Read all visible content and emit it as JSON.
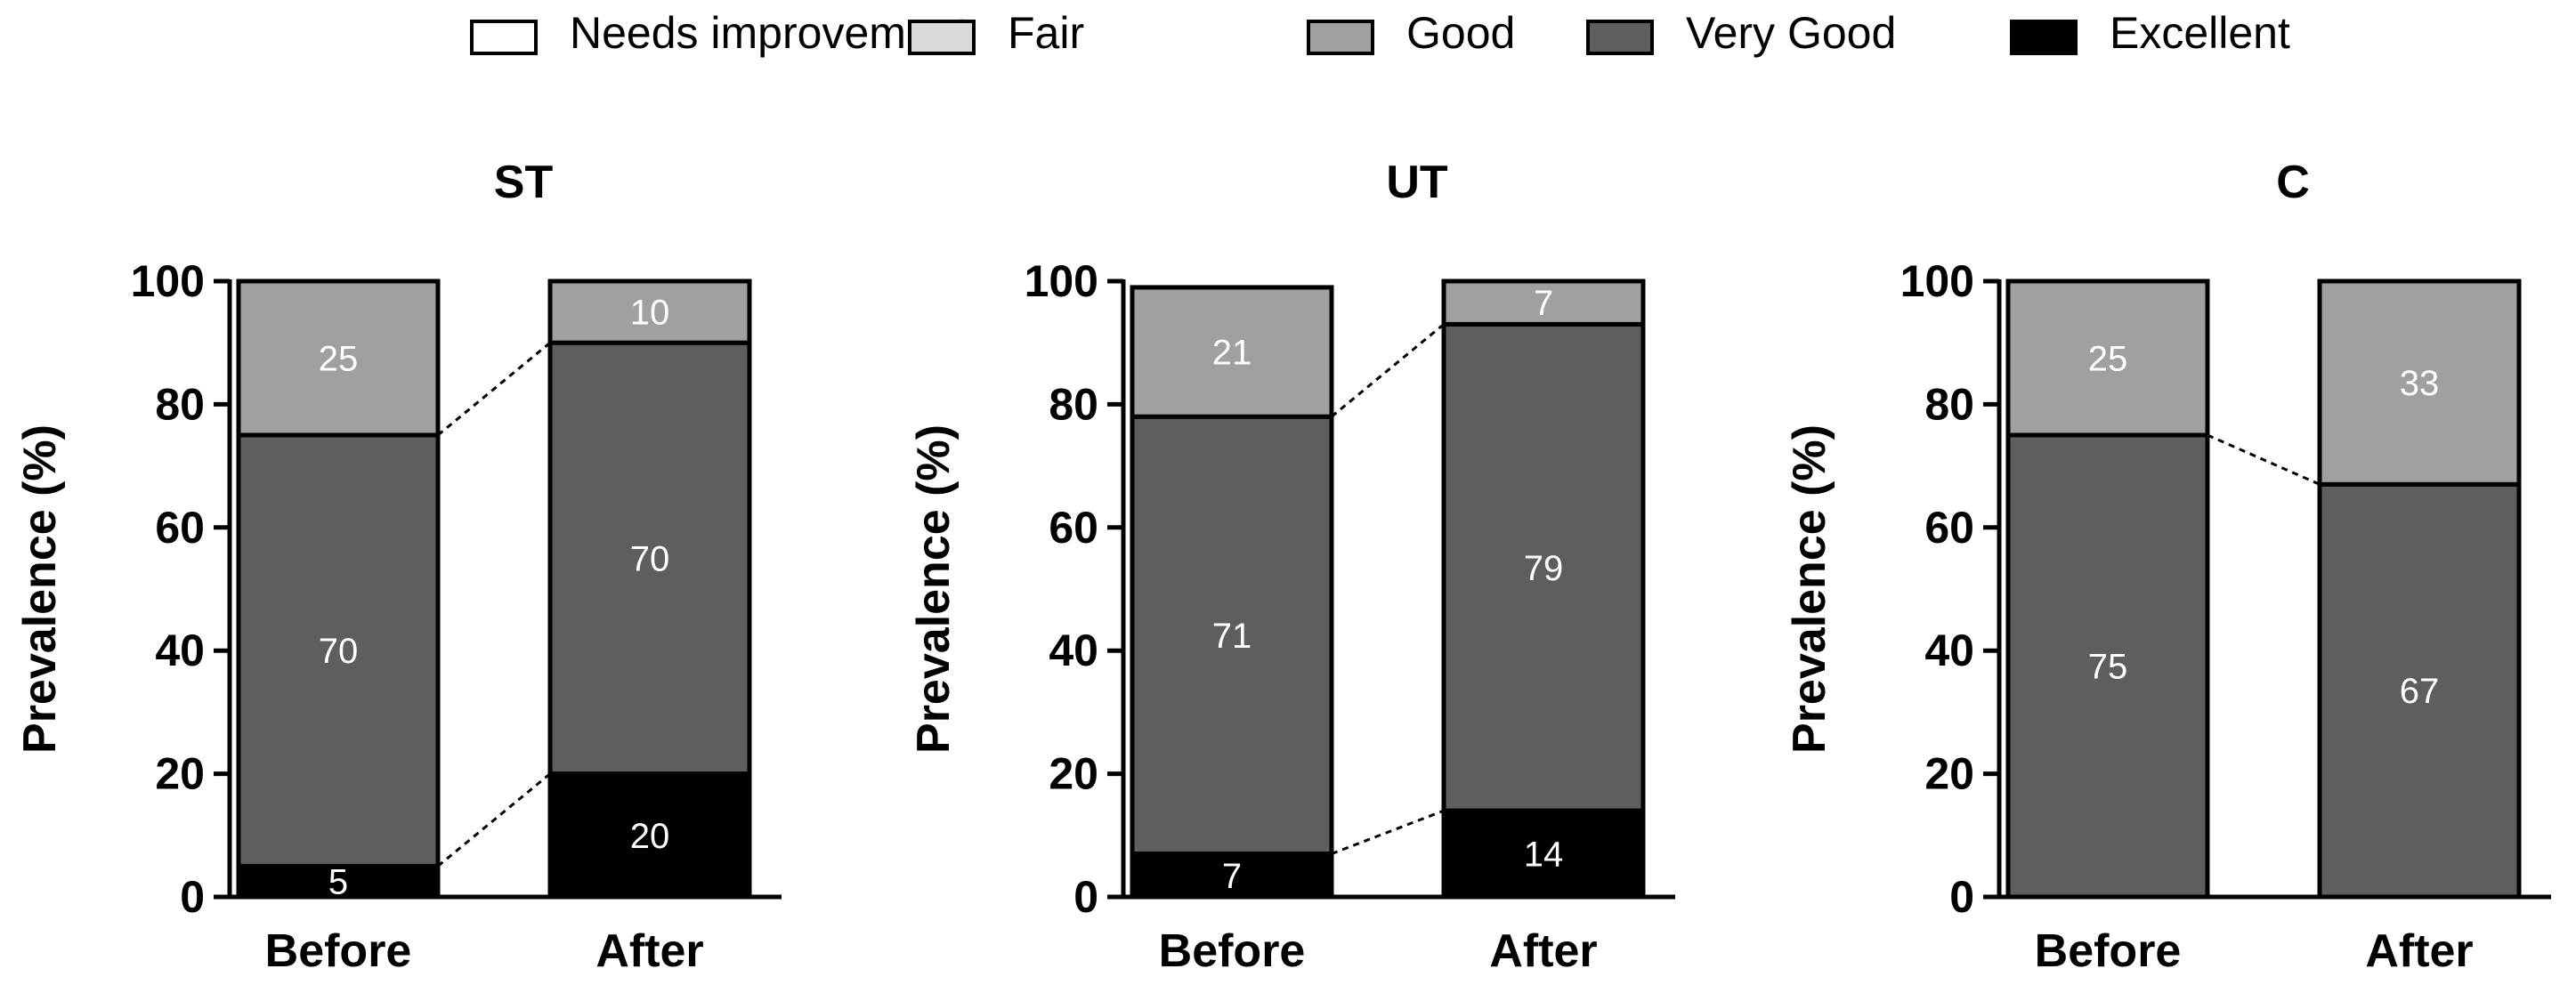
{
  "legend": [
    {
      "label": "Needs improvement",
      "color": "#ffffff"
    },
    {
      "label": "Fair",
      "color": "#d9d9d9"
    },
    {
      "label": "Good",
      "color": "#a09fa2"
    },
    {
      "label": "Very Good",
      "color": "#5e5e5e"
    },
    {
      "label": "Excellent",
      "color": "#000000"
    }
  ],
  "colors": {
    "label_on_dark": "#ffffff",
    "axis": "#000000"
  },
  "chart_data": [
    {
      "type": "bar",
      "stacked": true,
      "title": "ST",
      "categories": [
        "Before",
        "After"
      ],
      "ylabel": "Prevalence (%)",
      "ylim": [
        0,
        100
      ],
      "yticks": [
        "0",
        "20",
        "40",
        "60",
        "80",
        "100"
      ],
      "series": [
        {
          "name": "Excellent",
          "values": [
            5,
            20
          ],
          "labels": [
            "5",
            "20"
          ]
        },
        {
          "name": "Very Good",
          "values": [
            70,
            70
          ],
          "labels": [
            "70",
            "70"
          ]
        },
        {
          "name": "Good",
          "values": [
            25,
            10
          ],
          "labels": [
            "25",
            "10"
          ]
        }
      ],
      "connectors": [
        "Excellent",
        "Very Good"
      ]
    },
    {
      "type": "bar",
      "stacked": true,
      "title": "UT",
      "categories": [
        "Before",
        "After"
      ],
      "ylabel": "Prevalence (%)",
      "ylim": [
        0,
        100
      ],
      "yticks": [
        "0",
        "20",
        "40",
        "60",
        "80",
        "100"
      ],
      "series": [
        {
          "name": "Excellent",
          "values": [
            7,
            14
          ],
          "labels": [
            "7",
            "14"
          ]
        },
        {
          "name": "Very Good",
          "values": [
            71,
            79
          ],
          "labels": [
            "71",
            "79"
          ]
        },
        {
          "name": "Good",
          "values": [
            21,
            7
          ],
          "labels": [
            "21",
            "7"
          ]
        }
      ],
      "connectors": [
        "Excellent",
        "Very Good"
      ]
    },
    {
      "type": "bar",
      "stacked": true,
      "title": "C",
      "categories": [
        "Before",
        "After"
      ],
      "ylabel": "Prevalence (%)",
      "ylim": [
        0,
        100
      ],
      "yticks": [
        "0",
        "20",
        "40",
        "60",
        "80",
        "100"
      ],
      "series": [
        {
          "name": "Excellent",
          "values": [
            0,
            0
          ],
          "labels": [
            "",
            ""
          ]
        },
        {
          "name": "Very Good",
          "values": [
            75,
            67
          ],
          "labels": [
            "75",
            "67"
          ]
        },
        {
          "name": "Good",
          "values": [
            25,
            33
          ],
          "labels": [
            "25",
            "33"
          ]
        }
      ],
      "connectors": [
        "Very Good"
      ]
    }
  ]
}
